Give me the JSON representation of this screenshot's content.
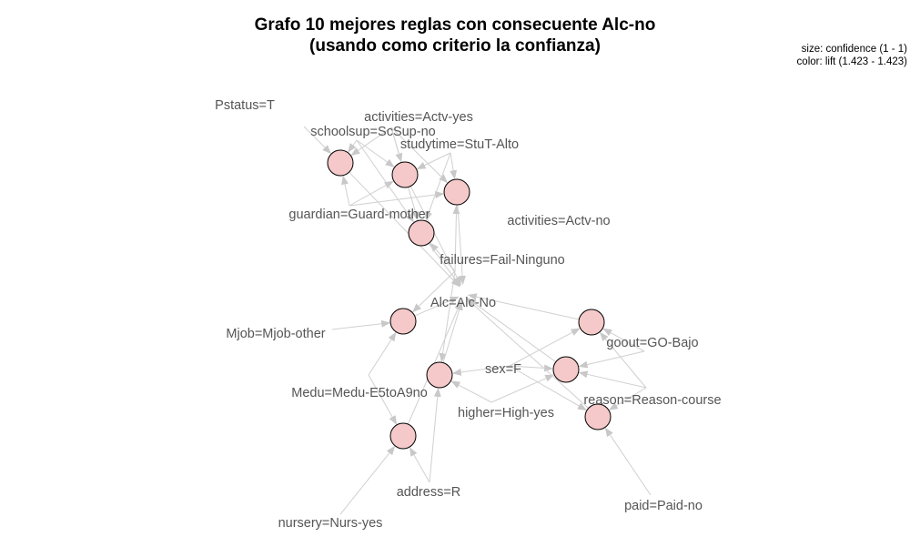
{
  "title": {
    "line1": "Grafo 10 mejores reglas con consecuente Alc-no",
    "line2": "(usando como criterio la confianza)"
  },
  "legend": {
    "size": "size: confidence (1 - 1)",
    "color": "color: lift (1.423 - 1.423)"
  },
  "colors": {
    "node_fill": "#f5c9c9",
    "edge": "#d0d0d0",
    "label": "#555555"
  },
  "items": [
    {
      "id": "pstatus",
      "label": "Pstatus=T"
    },
    {
      "id": "activities_yes",
      "label": "activities=Actv-yes"
    },
    {
      "id": "schoolsup",
      "label": "schoolsup=ScSup-no"
    },
    {
      "id": "studytime",
      "label": "studytime=StuT-Alto"
    },
    {
      "id": "guardian",
      "label": "guardian=Guard-mother"
    },
    {
      "id": "activities_no",
      "label": "activities=Actv-no"
    },
    {
      "id": "failures",
      "label": "failures=Fail-Ninguno"
    },
    {
      "id": "alc",
      "label": "Alc=Alc-No"
    },
    {
      "id": "mjob",
      "label": "Mjob=Mjob-other"
    },
    {
      "id": "goout",
      "label": "goout=GO-Bajo"
    },
    {
      "id": "sex",
      "label": "sex=F"
    },
    {
      "id": "medu",
      "label": "Medu=Medu-E5toA9no"
    },
    {
      "id": "reason",
      "label": "reason=Reason-course"
    },
    {
      "id": "higher",
      "label": "higher=High-yes"
    },
    {
      "id": "address",
      "label": "address=R"
    },
    {
      "id": "paid",
      "label": "paid=Paid-no"
    },
    {
      "id": "nursery",
      "label": "nursery=Nurs-yes"
    }
  ],
  "rules": [
    {
      "id": "r1",
      "confidence": 1,
      "lift": 1.423,
      "lhs": [
        "pstatus",
        "schoolsup",
        "activities_yes",
        "guardian"
      ]
    },
    {
      "id": "r2",
      "confidence": 1,
      "lift": 1.423,
      "lhs": [
        "schoolsup",
        "activities_yes",
        "studytime",
        "guardian"
      ]
    },
    {
      "id": "r3",
      "confidence": 1,
      "lift": 1.423,
      "lhs": [
        "activities_yes",
        "studytime",
        "guardian",
        "failures"
      ]
    },
    {
      "id": "r4",
      "confidence": 1,
      "lift": 1.423,
      "lhs": [
        "schoolsup",
        "activities_yes",
        "studytime",
        "failures"
      ]
    },
    {
      "id": "r5",
      "confidence": 1,
      "lift": 1.423,
      "lhs": [
        "mjob",
        "medu",
        "failures"
      ]
    },
    {
      "id": "r6",
      "confidence": 1,
      "lift": 1.423,
      "lhs": [
        "sex",
        "higher",
        "address",
        "failures"
      ]
    },
    {
      "id": "r7",
      "confidence": 1,
      "lift": 1.423,
      "lhs": [
        "medu",
        "address",
        "nursery"
      ]
    },
    {
      "id": "r8",
      "confidence": 1,
      "lift": 1.423,
      "lhs": [
        "goout",
        "reason",
        "sex"
      ]
    },
    {
      "id": "r9",
      "confidence": 1,
      "lift": 1.423,
      "lhs": [
        "goout",
        "reason",
        "higher",
        "sex"
      ]
    },
    {
      "id": "r10",
      "confidence": 1,
      "lift": 1.423,
      "lhs": [
        "sex",
        "reason",
        "paid"
      ]
    }
  ],
  "consequent": "alc"
}
